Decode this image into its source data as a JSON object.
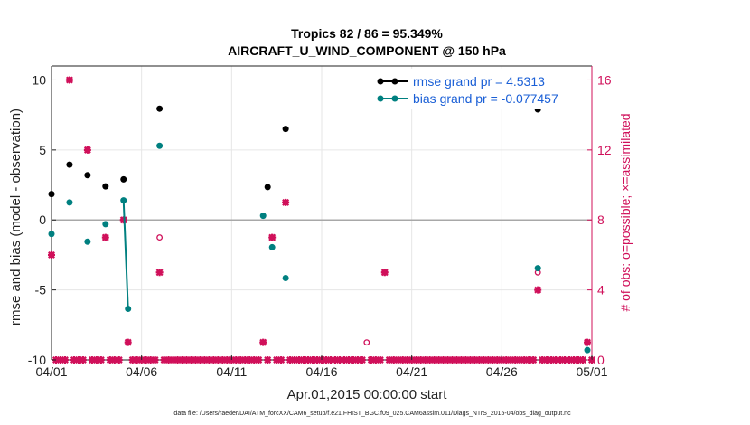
{
  "chart_data": {
    "type": "scatter",
    "title": "Tropics 82 / 86 = 95.349%",
    "subtitle": "AIRCRAFT_U_WIND_COMPONENT @ 150 hPa",
    "xlabel": "Apr.01,2015 00:00:00 start",
    "ylabel": "rmse and bias (model - observation)",
    "ylabel_right": "# of obs: o=possible; ×=assimilated",
    "xlim": [
      0,
      30
    ],
    "ylim": [
      -10,
      11
    ],
    "ylim_right": [
      0,
      16.8
    ],
    "x_ticks": [
      0,
      5,
      10,
      15,
      20,
      25,
      30
    ],
    "x_tick_labels": [
      "04/01",
      "04/06",
      "04/11",
      "04/16",
      "04/21",
      "04/26",
      "05/01"
    ],
    "y_ticks": [
      -10,
      -5,
      0,
      5,
      10
    ],
    "y_tick_labels": [
      "-10",
      "-5",
      "0",
      "5",
      "10"
    ],
    "y_ticks_right": [
      0,
      4,
      8,
      12,
      16
    ],
    "y_tick_labels_right": [
      "0",
      "4",
      "8",
      "12",
      "16"
    ],
    "grid": true,
    "legend_position": "top-right",
    "series": [
      {
        "name": "rmse grand pr = 4.5313",
        "color": "#000000",
        "axis": "left",
        "points": [
          [
            0,
            1.85
          ],
          [
            1,
            3.95
          ],
          [
            2,
            3.2
          ],
          [
            3,
            2.4
          ],
          [
            4,
            2.9
          ],
          [
            5,
            null
          ],
          [
            6,
            7.95
          ],
          [
            12,
            2.35
          ],
          [
            13,
            6.5
          ],
          [
            27,
            7.9
          ]
        ]
      },
      {
        "name": "bias grand pr = -0.077457",
        "color": "#008080",
        "axis": "left",
        "points": [
          [
            0,
            -1.0
          ],
          [
            1,
            1.25
          ],
          [
            2,
            -1.55
          ],
          [
            3,
            -0.3
          ],
          [
            4,
            1.4
          ],
          [
            4.25,
            -6.35
          ],
          [
            6,
            5.3
          ],
          [
            11.75,
            0.3
          ],
          [
            12.25,
            -1.95
          ],
          [
            13,
            -4.15
          ],
          [
            27,
            -3.45
          ],
          [
            29.75,
            -9.3
          ]
        ]
      },
      {
        "name": "obs possible",
        "color": "#d0105a",
        "axis": "right",
        "marker": "o",
        "points": [
          [
            0,
            6
          ],
          [
            1,
            16
          ],
          [
            2,
            12
          ],
          [
            3,
            7
          ],
          [
            4,
            8
          ],
          [
            4.25,
            1
          ],
          [
            6,
            7
          ],
          [
            11.75,
            1
          ],
          [
            12.25,
            7
          ],
          [
            13,
            9
          ],
          [
            17.5,
            1
          ],
          [
            18.5,
            5
          ],
          [
            27,
            5
          ],
          [
            29.75,
            1
          ]
        ]
      },
      {
        "name": "obs assimilated",
        "color": "#d0105a",
        "axis": "right",
        "marker": "x",
        "points": [
          [
            0,
            6
          ],
          [
            1,
            16
          ],
          [
            2,
            12
          ],
          [
            3,
            7
          ],
          [
            4,
            8
          ],
          [
            4.25,
            1
          ],
          [
            6,
            5
          ],
          [
            11.75,
            1
          ],
          [
            12.25,
            7
          ],
          [
            13,
            9
          ],
          [
            18.5,
            5
          ],
          [
            27,
            4
          ],
          [
            29.75,
            1
          ]
        ]
      }
    ],
    "bias_line_segments": [
      [
        [
          4,
          1.4
        ],
        [
          4.25,
          -6.35
        ]
      ]
    ],
    "zero_line_y": 0
  },
  "footer": "data file: /Users/raeder/DAI/ATM_forcXX/CAM6_setup/f.e21.FHIST_BGC.f09_025.CAM6assim.011/Diags_NTrS_2015-04/obs_diag_output.nc"
}
